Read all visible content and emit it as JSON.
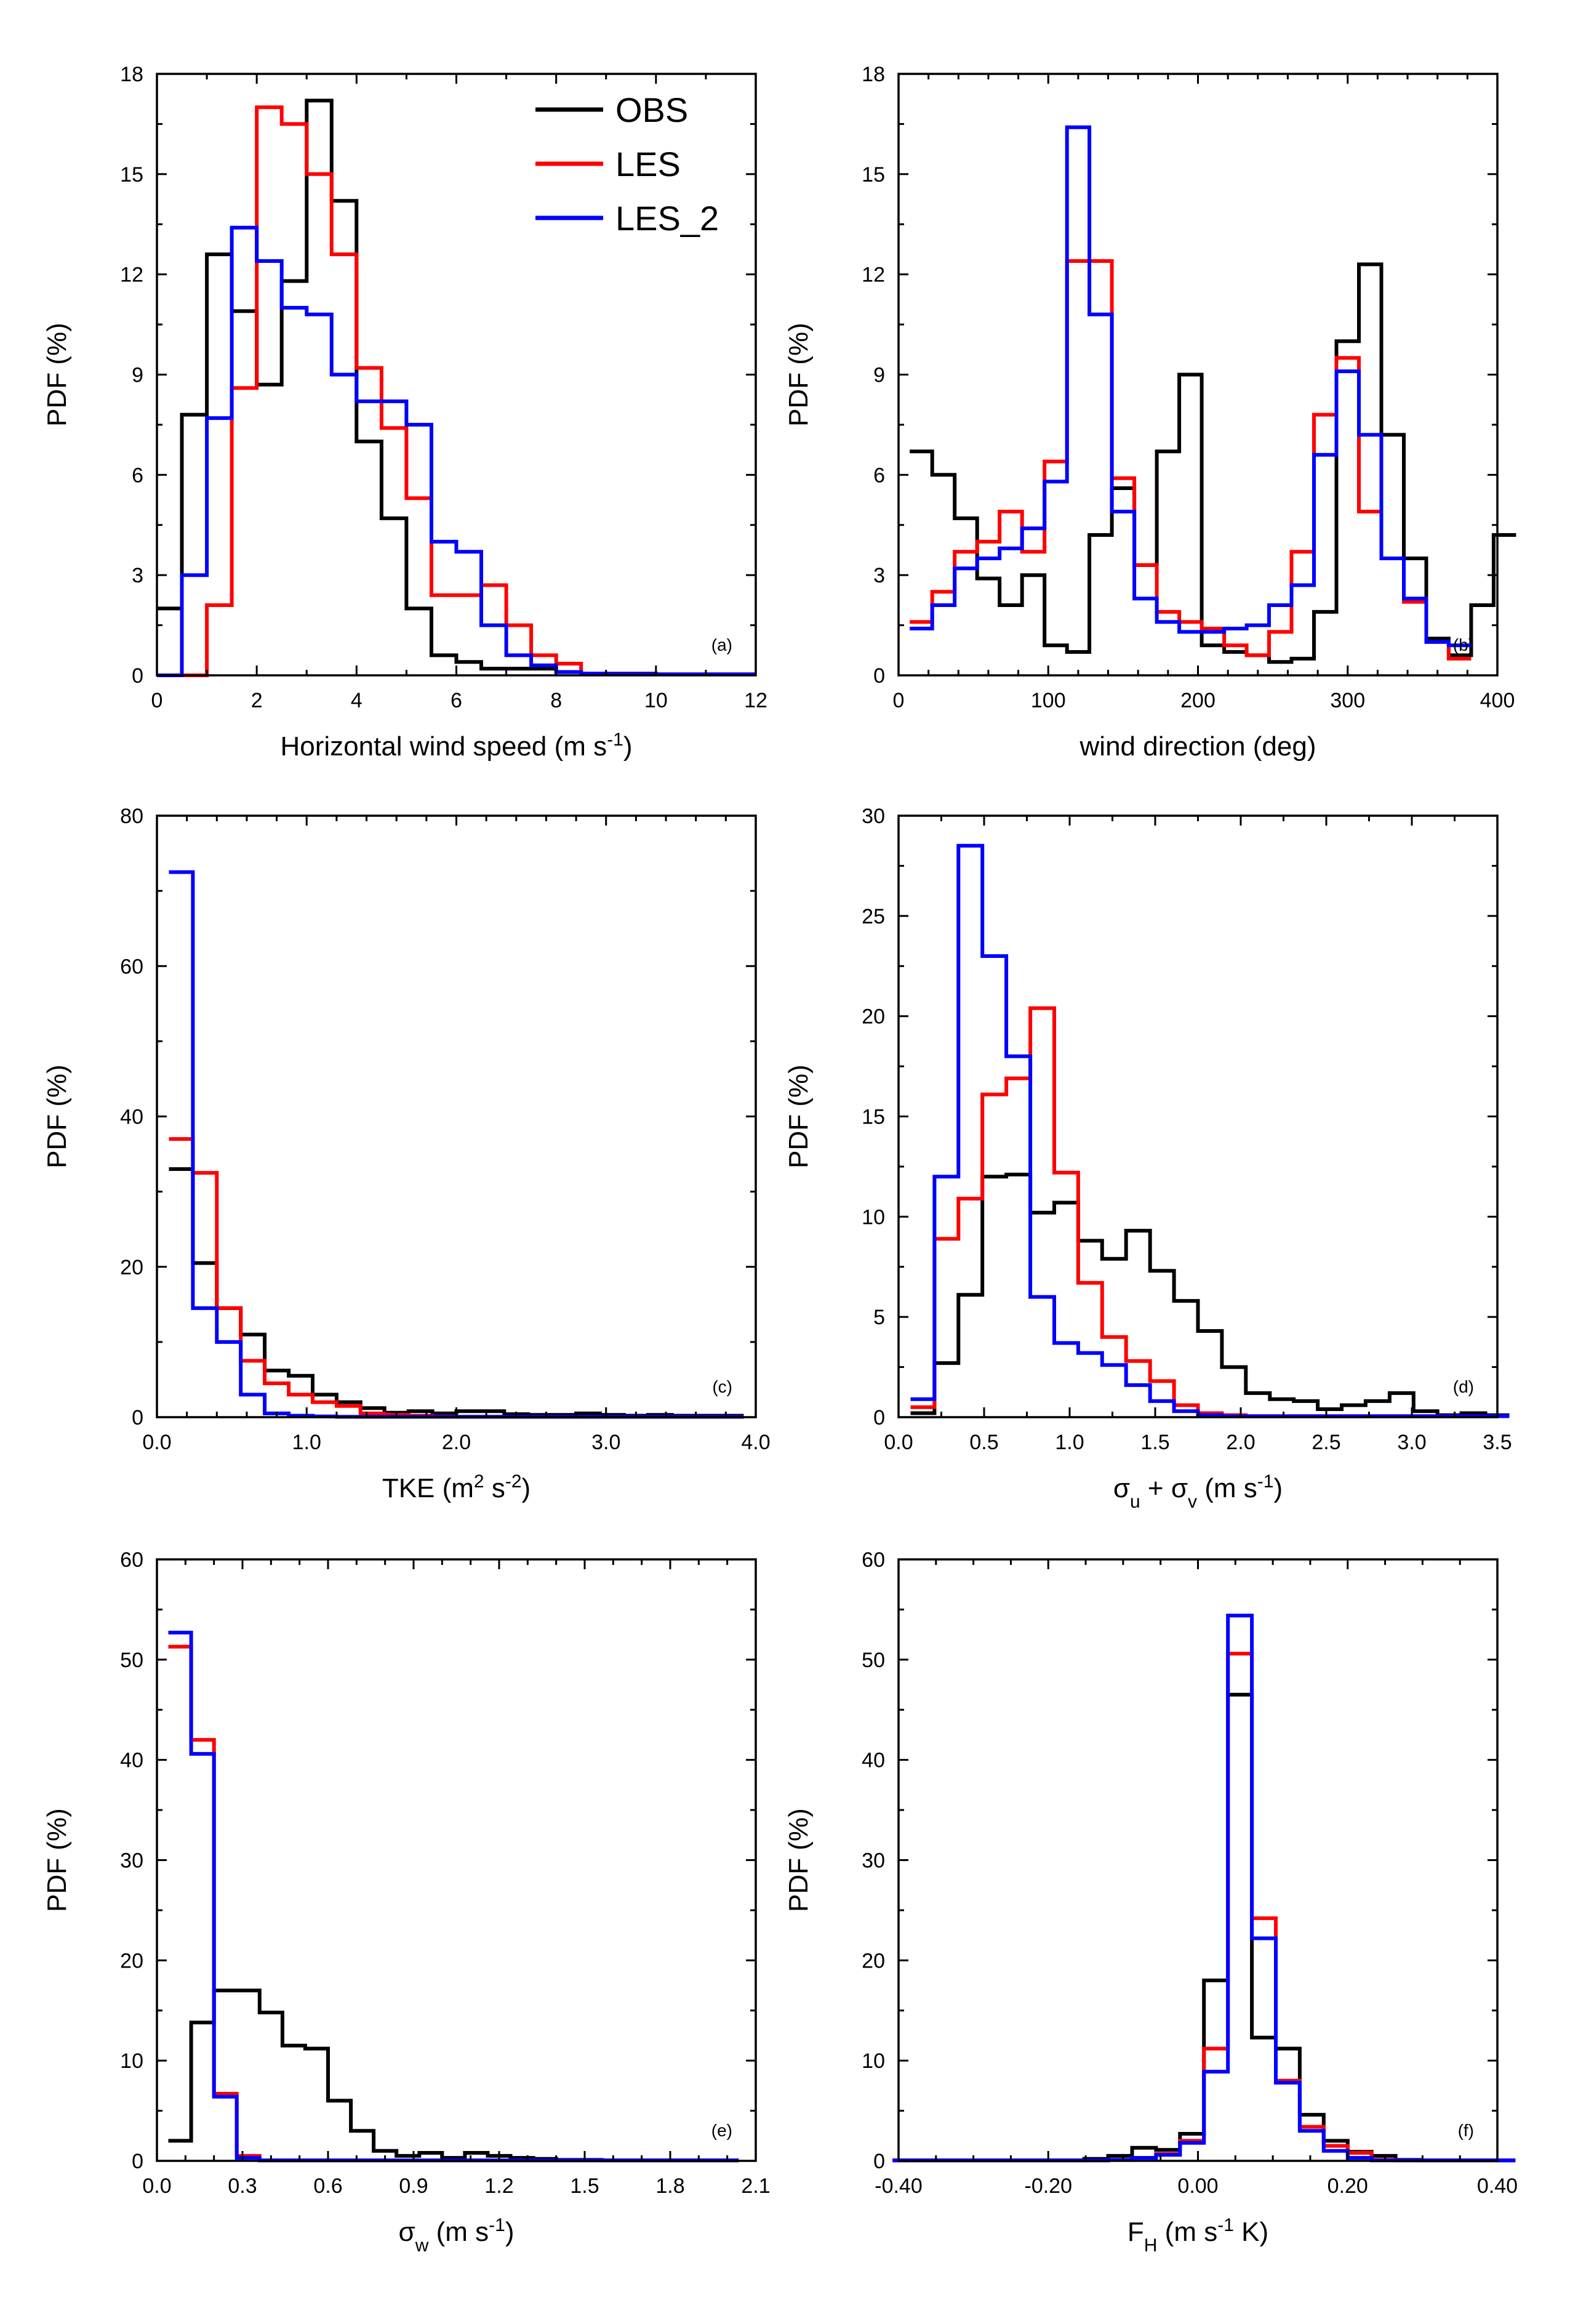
{
  "legend": [
    {
      "name": "OBS",
      "color": "#000000"
    },
    {
      "name": "LES",
      "color": "#ff0000"
    },
    {
      "name": "LES_2",
      "color": "#0000ff"
    }
  ],
  "chart_data": [
    {
      "type": "line",
      "tag": "(a)",
      "title": "",
      "ylabel": "PDF (%)",
      "xlabel_parts": [
        {
          "t": "Horizontal wind speed (m s"
        },
        {
          "t": "-1",
          "sup": true
        },
        {
          "t": ")"
        }
      ],
      "xlim": [
        0,
        12
      ],
      "ylim": [
        0,
        18
      ],
      "xticks": [
        0,
        2,
        4,
        6,
        8,
        10,
        12
      ],
      "xtick_labels": [
        "0",
        "2",
        "4",
        "6",
        "8",
        "10",
        "12"
      ],
      "yticks": [
        0,
        3,
        6,
        9,
        12,
        15,
        18
      ],
      "ytick_labels": [
        "0",
        "3",
        "6",
        "9",
        "12",
        "15",
        "18"
      ],
      "xminor": [
        1,
        3,
        5,
        7,
        9,
        11
      ],
      "yminor": [
        1.5,
        4.5,
        7.5,
        10.5,
        13.5,
        16.5
      ],
      "has_legend": true,
      "series": [
        {
          "name": "OBS",
          "color": "#000000",
          "x0": 0,
          "bin": 0.5,
          "values": [
            2.0,
            7.8,
            12.6,
            10.9,
            8.7,
            11.8,
            17.2,
            14.2,
            7.0,
            4.7,
            2.0,
            0.6,
            0.4,
            0.2,
            0.2,
            0.2,
            0.1,
            0.05,
            0.05,
            0.05,
            0.03,
            0.03,
            0.03,
            0.03
          ]
        },
        {
          "name": "LES",
          "color": "#ff0000",
          "x0": 0,
          "bin": 0.5,
          "values": [
            0,
            0,
            2.1,
            8.6,
            17.0,
            16.5,
            15.0,
            12.6,
            9.2,
            7.4,
            5.3,
            2.4,
            2.4,
            2.7,
            1.5,
            0.6,
            0.35,
            0.05,
            0.03,
            0.03,
            0.03,
            0.03,
            0.03,
            0.03
          ]
        },
        {
          "name": "LES_2",
          "color": "#0000ff",
          "x0": 0,
          "bin": 0.5,
          "values": [
            0,
            3.0,
            7.7,
            13.4,
            12.4,
            11.0,
            10.8,
            9.0,
            8.2,
            8.2,
            7.5,
            4.0,
            3.7,
            1.5,
            0.6,
            0.3,
            0.1,
            0.05,
            0.03,
            0.03,
            0.03,
            0.03,
            0.03,
            0.03
          ]
        }
      ]
    },
    {
      "type": "line",
      "tag": "(b)",
      "title": "",
      "ylabel": "PDF (%)",
      "xlabel_parts": [
        {
          "t": "wind direction (deg)"
        }
      ],
      "xlim": [
        0,
        400
      ],
      "ylim": [
        0,
        18
      ],
      "xticks": [
        0,
        100,
        200,
        300,
        400
      ],
      "xtick_labels": [
        "0",
        "100",
        "200",
        "300",
        "400"
      ],
      "yticks": [
        0,
        3,
        6,
        9,
        12,
        15,
        18
      ],
      "ytick_labels": [
        "0",
        "3",
        "6",
        "9",
        "12",
        "15",
        "18"
      ],
      "xminor": [
        20,
        40,
        60,
        80,
        120,
        140,
        160,
        180,
        220,
        240,
        260,
        280,
        320,
        340,
        360,
        380
      ],
      "yminor": [
        1.5,
        4.5,
        7.5,
        10.5,
        13.5,
        16.5
      ],
      "has_legend": false,
      "series": [
        {
          "name": "OBS",
          "color": "#000000",
          "x0": 7.5,
          "bin": 15,
          "values": [
            6.7,
            6.0,
            4.7,
            2.9,
            2.1,
            3.0,
            0.9,
            0.7,
            4.2,
            5.6,
            3.3,
            6.7,
            9.0,
            0.9,
            0.7,
            0.6,
            0.4,
            0.5,
            1.9,
            10.0,
            12.3,
            7.2,
            3.5,
            1.1,
            0.6,
            2.1,
            4.2
          ]
        },
        {
          "name": "LES",
          "color": "#ff0000",
          "x0": 7.5,
          "bin": 15,
          "values": [
            1.6,
            2.5,
            3.7,
            4.0,
            4.9,
            3.7,
            6.4,
            12.4,
            12.4,
            5.9,
            3.3,
            1.9,
            1.6,
            1.4,
            0.9,
            0.6,
            1.3,
            3.7,
            7.8,
            9.5,
            4.9,
            3.5,
            2.2,
            1.0,
            0.5
          ]
        },
        {
          "name": "LES_2",
          "color": "#0000ff",
          "x0": 7.5,
          "bin": 15,
          "values": [
            1.4,
            2.1,
            3.2,
            3.5,
            3.8,
            4.4,
            5.8,
            16.4,
            10.8,
            4.9,
            2.3,
            1.6,
            1.3,
            1.3,
            1.4,
            1.5,
            2.1,
            2.7,
            6.6,
            9.1,
            7.2,
            3.5,
            2.3,
            1.0,
            0.9
          ]
        }
      ]
    },
    {
      "type": "line",
      "tag": "(c)",
      "title": "",
      "ylabel": "PDF (%)",
      "xlabel_parts": [
        {
          "t": "TKE (m"
        },
        {
          "t": "2",
          "sup": true
        },
        {
          "t": " s"
        },
        {
          "t": "-2",
          "sup": true
        },
        {
          "t": ")"
        }
      ],
      "xlim": [
        0,
        4
      ],
      "ylim": [
        0,
        80
      ],
      "xticks": [
        0,
        1,
        2,
        3,
        4
      ],
      "xtick_labels": [
        "0.0",
        "1.0",
        "2.0",
        "3.0",
        "4.0"
      ],
      "yticks": [
        0,
        20,
        40,
        60,
        80
      ],
      "ytick_labels": [
        "0",
        "20",
        "40",
        "60",
        "80"
      ],
      "xminor": [
        0.2,
        0.4,
        0.6,
        0.8,
        1.2,
        1.4,
        1.6,
        1.8,
        2.2,
        2.4,
        2.6,
        2.8,
        3.2,
        3.4,
        3.6,
        3.8
      ],
      "yminor": [
        10,
        30,
        50,
        70
      ],
      "has_legend": false,
      "series": [
        {
          "name": "OBS",
          "color": "#000000",
          "x0": 0.08,
          "bin": 0.16,
          "values": [
            33.0,
            20.5,
            14.5,
            11.0,
            6.2,
            5.5,
            3.0,
            2.0,
            1.2,
            0.6,
            0.8,
            0.5,
            0.8,
            0.8,
            0.4,
            0.3,
            0.3,
            0.5,
            0.3,
            0.2,
            0.3,
            0.2,
            0.2,
            0.2
          ]
        },
        {
          "name": "LES",
          "color": "#ff0000",
          "x0": 0.08,
          "bin": 0.16,
          "values": [
            37.0,
            32.5,
            14.5,
            7.5,
            4.5,
            3.0,
            2.0,
            1.5,
            0.5,
            0.3,
            0.2,
            0.1,
            0.05,
            0.05,
            0.05,
            0.05,
            0.05,
            0.05,
            0.05,
            0.05,
            0.05,
            0.05,
            0.05,
            0.05
          ]
        },
        {
          "name": "LES_2",
          "color": "#0000ff",
          "x0": 0.08,
          "bin": 0.16,
          "values": [
            72.5,
            14.5,
            10.0,
            3.0,
            0.5,
            0.2,
            0.1,
            0.05,
            0.05,
            0.05,
            0.05,
            0.05,
            0.05,
            0.05,
            0.05,
            0.05,
            0.05,
            0.05,
            0.05,
            0.05,
            0.05,
            0.05,
            0.05,
            0.05
          ]
        }
      ]
    },
    {
      "type": "line",
      "tag": "(d)",
      "title": "",
      "ylabel": "PDF (%)",
      "xlabel_parts": [
        {
          "t": "σ"
        },
        {
          "t": "u",
          "sub": true
        },
        {
          "t": " + σ"
        },
        {
          "t": "v",
          "sub": true
        },
        {
          "t": " (m s"
        },
        {
          "t": "-1",
          "sup": true
        },
        {
          "t": ")"
        }
      ],
      "xlim": [
        0,
        3.5
      ],
      "ylim": [
        0,
        30
      ],
      "xticks": [
        0,
        0.5,
        1.0,
        1.5,
        2.0,
        2.5,
        3.0,
        3.5
      ],
      "xtick_labels": [
        "0.0",
        "0.5",
        "1.0",
        "1.5",
        "2.0",
        "2.5",
        "3.0",
        "3.5"
      ],
      "yticks": [
        0,
        5,
        10,
        15,
        20,
        25,
        30
      ],
      "ytick_labels": [
        "0",
        "5",
        "10",
        "15",
        "20",
        "25",
        "30"
      ],
      "xminor": [
        0.25,
        0.75,
        1.25,
        1.75,
        2.25,
        2.75,
        3.25
      ],
      "yminor": [
        2.5,
        7.5,
        12.5,
        17.5,
        22.5,
        27.5
      ],
      "has_legend": false,
      "series": [
        {
          "name": "OBS",
          "color": "#000000",
          "x0": 0.07,
          "bin": 0.14,
          "values": [
            0.2,
            2.7,
            6.1,
            12.0,
            12.1,
            10.2,
            10.7,
            8.8,
            7.9,
            9.3,
            7.3,
            5.8,
            4.3,
            2.5,
            1.2,
            0.9,
            0.8,
            0.4,
            0.6,
            0.8,
            1.2,
            0.3,
            0.1,
            0.2,
            0.1
          ]
        },
        {
          "name": "LES",
          "color": "#ff0000",
          "x0": 0.07,
          "bin": 0.14,
          "values": [
            0.5,
            8.9,
            10.9,
            16.1,
            16.9,
            20.4,
            12.2,
            6.7,
            4.0,
            2.8,
            1.8,
            0.6,
            0.2,
            0.1,
            0.05,
            0.05,
            0.05,
            0.05,
            0.05,
            0.05,
            0.05,
            0.05,
            0.05,
            0.05,
            0.05
          ]
        },
        {
          "name": "LES_2",
          "color": "#0000ff",
          "x0": 0.07,
          "bin": 0.14,
          "values": [
            0.9,
            12.0,
            28.5,
            23.0,
            18.0,
            6.0,
            3.7,
            3.2,
            2.6,
            1.6,
            0.8,
            0.3,
            0.1,
            0.05,
            0.05,
            0.05,
            0.05,
            0.05,
            0.05,
            0.05,
            0.05,
            0.05,
            0.05,
            0.05,
            0.05
          ]
        }
      ]
    },
    {
      "type": "line",
      "tag": "(e)",
      "title": "",
      "ylabel": "PDF (%)",
      "xlabel_parts": [
        {
          "t": "σ"
        },
        {
          "t": "w",
          "sub": true
        },
        {
          "t": " (m s"
        },
        {
          "t": "-1",
          "sup": true
        },
        {
          "t": ")"
        }
      ],
      "xlim": [
        0,
        2.1
      ],
      "ylim": [
        0,
        60
      ],
      "xticks": [
        0,
        0.3,
        0.6,
        0.9,
        1.2,
        1.5,
        1.8,
        2.1
      ],
      "xtick_labels": [
        "0.0",
        "0.3",
        "0.6",
        "0.9",
        "1.2",
        "1.5",
        "1.8",
        "2.1"
      ],
      "yticks": [
        0,
        10,
        20,
        30,
        40,
        50,
        60
      ],
      "ytick_labels": [
        "0",
        "10",
        "20",
        "30",
        "40",
        "50",
        "60"
      ],
      "xminor": [
        0.1,
        0.2,
        0.4,
        0.5,
        0.7,
        0.8,
        1.0,
        1.1,
        1.3,
        1.4,
        1.6,
        1.7,
        1.9,
        2.0
      ],
      "yminor": [
        5,
        15,
        25,
        35,
        45,
        55
      ],
      "has_legend": false,
      "series": [
        {
          "name": "OBS",
          "color": "#000000",
          "x0": 0.04,
          "bin": 0.08,
          "values": [
            2.0,
            13.8,
            17.0,
            17.0,
            14.8,
            11.5,
            11.2,
            6.0,
            3.0,
            1.0,
            0.5,
            0.8,
            0.3,
            0.8,
            0.5,
            0.3,
            0.2,
            0.1,
            0.1,
            0.05,
            0.05,
            0.05,
            0.05,
            0.05,
            0.05
          ]
        },
        {
          "name": "LES",
          "color": "#ff0000",
          "x0": 0.04,
          "bin": 0.08,
          "values": [
            51.3,
            42.0,
            6.7,
            0.5,
            0.05,
            0.05,
            0.05,
            0.05,
            0.05,
            0.05,
            0.05,
            0.05,
            0.05,
            0.05,
            0.05,
            0.05,
            0.05,
            0.05,
            0.05,
            0.05,
            0.05,
            0.05,
            0.05,
            0.05,
            0.05
          ]
        },
        {
          "name": "LES_2",
          "color": "#0000ff",
          "x0": 0.04,
          "bin": 0.08,
          "values": [
            52.7,
            40.6,
            6.4,
            0.3,
            0.05,
            0.05,
            0.05,
            0.05,
            0.05,
            0.05,
            0.05,
            0.05,
            0.05,
            0.05,
            0.05,
            0.05,
            0.05,
            0.05,
            0.05,
            0.05,
            0.05,
            0.05,
            0.05,
            0.05,
            0.05
          ]
        }
      ]
    },
    {
      "type": "line",
      "tag": "(f)",
      "title": "",
      "ylabel": "PDF (%)",
      "xlabel_parts": [
        {
          "t": "F"
        },
        {
          "t": "H",
          "sub": true
        },
        {
          "t": " (m s"
        },
        {
          "t": "-1",
          "sup": true
        },
        {
          "t": " K)"
        }
      ],
      "xlim": [
        -0.4,
        0.4
      ],
      "ylim": [
        0,
        60
      ],
      "xticks": [
        -0.4,
        -0.2,
        0.0,
        0.2,
        0.4
      ],
      "xtick_labels": [
        "-0.40",
        "-0.20",
        "0.00",
        "0.20",
        "0.40"
      ],
      "yticks": [
        0,
        10,
        20,
        30,
        40,
        50,
        60
      ],
      "ytick_labels": [
        "0",
        "10",
        "20",
        "30",
        "40",
        "50",
        "60"
      ],
      "xminor": [
        -0.35,
        -0.3,
        -0.25,
        -0.15,
        -0.1,
        -0.05,
        0.05,
        0.1,
        0.15,
        0.25,
        0.3,
        0.35
      ],
      "yminor": [
        5,
        15,
        25,
        35,
        45,
        55
      ],
      "has_legend": false,
      "series": [
        {
          "name": "OBS",
          "color": "#000000",
          "x0": -0.408,
          "bin": 0.032,
          "values": [
            0.05,
            0.05,
            0.05,
            0.05,
            0.05,
            0.05,
            0.05,
            0.05,
            0.2,
            0.5,
            1.3,
            1.1,
            2.7,
            18.0,
            46.5,
            12.3,
            11.2,
            4.6,
            2.0,
            0.9,
            0.5,
            0.1,
            0.05,
            0.05,
            0.05,
            0.05
          ]
        },
        {
          "name": "LES",
          "color": "#ff0000",
          "x0": -0.408,
          "bin": 0.032,
          "values": [
            0.05,
            0.05,
            0.05,
            0.05,
            0.05,
            0.05,
            0.05,
            0.05,
            0.05,
            0.1,
            0.3,
            0.7,
            2.0,
            11.2,
            50.6,
            24.2,
            8.0,
            3.4,
            1.5,
            0.8,
            0.1,
            0.05,
            0.05,
            0.05,
            0.05,
            0.05
          ]
        },
        {
          "name": "LES_2",
          "color": "#0000ff",
          "x0": -0.408,
          "bin": 0.032,
          "values": [
            0.05,
            0.05,
            0.05,
            0.05,
            0.05,
            0.05,
            0.05,
            0.05,
            0.05,
            0.1,
            0.3,
            0.6,
            1.8,
            8.9,
            54.4,
            22.2,
            7.8,
            3.0,
            1.0,
            0.3,
            0.05,
            0.05,
            0.05,
            0.05,
            0.05,
            0.05
          ]
        }
      ]
    }
  ]
}
